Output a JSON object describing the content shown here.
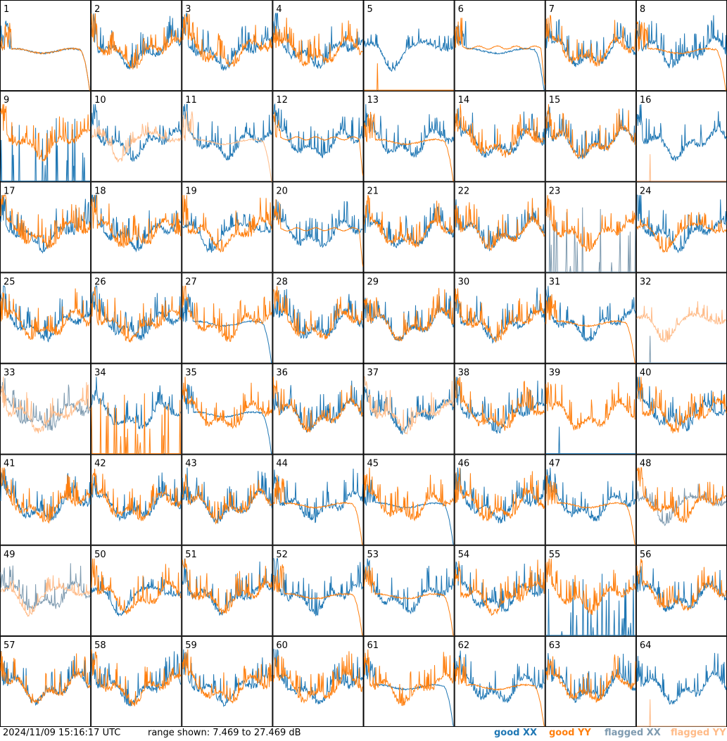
{
  "footer": {
    "timestamp": "2024/11/09 15:16:17 UTC",
    "range_text": "range shown: 7.469 to 27.469 dB",
    "legend": {
      "good_xx": "good XX",
      "good_yy": "good YY",
      "flagged_xx": "flagged XX",
      "flagged_yy": "flagged YY"
    }
  },
  "colors": {
    "good_xx": "#1f77b4",
    "good_yy": "#ff7f0e",
    "flagged_xx": "#7f9bb0",
    "flagged_yy": "#ffbb88"
  },
  "chart_data": {
    "type": "line",
    "layout": "8x8 small multiples",
    "ylim": [
      7.469,
      27.469
    ],
    "yunit": "dB",
    "panels": [
      {
        "label": "1",
        "xx": "good",
        "yy": "good",
        "xx_shape": "rolloff",
        "yy_shape": "rolloff"
      },
      {
        "label": "2",
        "xx": "good",
        "yy": "good",
        "xx_shape": "normal",
        "yy_shape": "normal"
      },
      {
        "label": "3",
        "xx": "good",
        "yy": "good",
        "xx_shape": "normal",
        "yy_shape": "normal"
      },
      {
        "label": "4",
        "xx": "good",
        "yy": "good",
        "xx_shape": "normal",
        "yy_shape": "normal"
      },
      {
        "label": "5",
        "xx": "good",
        "yy": "good",
        "xx_shape": "dip",
        "yy_shape": "zero"
      },
      {
        "label": "6",
        "xx": "good",
        "yy": "good",
        "xx_shape": "rolloff",
        "yy_shape": "flat"
      },
      {
        "label": "7",
        "xx": "good",
        "yy": "good",
        "xx_shape": "normal",
        "yy_shape": "normal"
      },
      {
        "label": "8",
        "xx": "good",
        "yy": "good",
        "xx_shape": "normal",
        "yy_shape": "rolloff"
      },
      {
        "label": "9",
        "xx": "good",
        "yy": "good",
        "xx_shape": "spiky_low",
        "yy_shape": "normal"
      },
      {
        "label": "10",
        "xx": "good",
        "yy": "flagged",
        "xx_shape": "normal",
        "yy_shape": "dip"
      },
      {
        "label": "11",
        "xx": "good",
        "yy": "flagged",
        "xx_shape": "normal",
        "yy_shape": "rolloff"
      },
      {
        "label": "12",
        "xx": "good",
        "yy": "good",
        "xx_shape": "normal",
        "yy_shape": "flat"
      },
      {
        "label": "13",
        "xx": "good",
        "yy": "good",
        "xx_shape": "normal",
        "yy_shape": "rolloff"
      },
      {
        "label": "14",
        "xx": "good",
        "yy": "good",
        "xx_shape": "normal",
        "yy_shape": "normal"
      },
      {
        "label": "15",
        "xx": "good",
        "yy": "good",
        "xx_shape": "normal",
        "yy_shape": "normal"
      },
      {
        "label": "16",
        "xx": "good",
        "yy": "flagged",
        "xx_shape": "normal",
        "yy_shape": "zero"
      },
      {
        "label": "17",
        "xx": "good",
        "yy": "good",
        "xx_shape": "normal",
        "yy_shape": "normal"
      },
      {
        "label": "18",
        "xx": "good",
        "yy": "good",
        "xx_shape": "normal",
        "yy_shape": "normal"
      },
      {
        "label": "19",
        "xx": "good",
        "yy": "good",
        "xx_shape": "dip",
        "yy_shape": "normal"
      },
      {
        "label": "20",
        "xx": "good",
        "yy": "good",
        "xx_shape": "normal",
        "yy_shape": "flat"
      },
      {
        "label": "21",
        "xx": "good",
        "yy": "good",
        "xx_shape": "normal",
        "yy_shape": "normal"
      },
      {
        "label": "22",
        "xx": "good",
        "yy": "good",
        "xx_shape": "normal",
        "yy_shape": "normal"
      },
      {
        "label": "23",
        "xx": "flagged",
        "yy": "good",
        "xx_shape": "spiky_low",
        "yy_shape": "normal"
      },
      {
        "label": "24",
        "xx": "good",
        "yy": "good",
        "xx_shape": "normal",
        "yy_shape": "dip"
      },
      {
        "label": "25",
        "xx": "good",
        "yy": "good",
        "xx_shape": "normal",
        "yy_shape": "normal"
      },
      {
        "label": "26",
        "xx": "good",
        "yy": "good",
        "xx_shape": "normal",
        "yy_shape": "normal"
      },
      {
        "label": "27",
        "xx": "good",
        "yy": "good",
        "xx_shape": "rolloff",
        "yy_shape": "normal"
      },
      {
        "label": "28",
        "xx": "good",
        "yy": "good",
        "xx_shape": "normal",
        "yy_shape": "normal"
      },
      {
        "label": "29",
        "xx": "good",
        "yy": "good",
        "xx_shape": "normal",
        "yy_shape": "normal"
      },
      {
        "label": "30",
        "xx": "good",
        "yy": "good",
        "xx_shape": "normal",
        "yy_shape": "normal"
      },
      {
        "label": "31",
        "xx": "good",
        "yy": "good",
        "xx_shape": "normal",
        "yy_shape": "rolloff"
      },
      {
        "label": "32",
        "xx": "flagged",
        "yy": "flagged",
        "xx_shape": "zero",
        "yy_shape": "dip"
      },
      {
        "label": "33",
        "xx": "flagged",
        "yy": "flagged",
        "xx_shape": "normal",
        "yy_shape": "normal"
      },
      {
        "label": "34",
        "xx": "good",
        "yy": "good",
        "xx_shape": "normal",
        "yy_shape": "spiky_low"
      },
      {
        "label": "35",
        "xx": "good",
        "yy": "good",
        "xx_shape": "rolloff",
        "yy_shape": "normal"
      },
      {
        "label": "36",
        "xx": "good",
        "yy": "good",
        "xx_shape": "normal",
        "yy_shape": "normal"
      },
      {
        "label": "37",
        "xx": "good",
        "yy": "flagged",
        "xx_shape": "normal",
        "yy_shape": "normal"
      },
      {
        "label": "38",
        "xx": "good",
        "yy": "good",
        "xx_shape": "normal",
        "yy_shape": "normal"
      },
      {
        "label": "39",
        "xx": "good",
        "yy": "good",
        "xx_shape": "zero",
        "yy_shape": "normal"
      },
      {
        "label": "40",
        "xx": "good",
        "yy": "good",
        "xx_shape": "normal",
        "yy_shape": "normal"
      },
      {
        "label": "41",
        "xx": "good",
        "yy": "good",
        "xx_shape": "normal",
        "yy_shape": "normal"
      },
      {
        "label": "42",
        "xx": "good",
        "yy": "good",
        "xx_shape": "normal",
        "yy_shape": "normal"
      },
      {
        "label": "43",
        "xx": "good",
        "yy": "good",
        "xx_shape": "normal",
        "yy_shape": "normal"
      },
      {
        "label": "44",
        "xx": "good",
        "yy": "good",
        "xx_shape": "normal",
        "yy_shape": "rolloff"
      },
      {
        "label": "45",
        "xx": "good",
        "yy": "good",
        "xx_shape": "rolloff",
        "yy_shape": "normal"
      },
      {
        "label": "46",
        "xx": "good",
        "yy": "good",
        "xx_shape": "normal",
        "yy_shape": "normal"
      },
      {
        "label": "47",
        "xx": "good",
        "yy": "good",
        "xx_shape": "normal",
        "yy_shape": "rolloff"
      },
      {
        "label": "48",
        "xx": "flagged",
        "yy": "good",
        "xx_shape": "dip",
        "yy_shape": "normal"
      },
      {
        "label": "49",
        "xx": "flagged",
        "yy": "flagged",
        "xx_shape": "normal",
        "yy_shape": "dip"
      },
      {
        "label": "50",
        "xx": "good",
        "yy": "good",
        "xx_shape": "dip",
        "yy_shape": "normal"
      },
      {
        "label": "51",
        "xx": "good",
        "yy": "good",
        "xx_shape": "normal",
        "yy_shape": "normal"
      },
      {
        "label": "52",
        "xx": "good",
        "yy": "good",
        "xx_shape": "normal",
        "yy_shape": "rolloff"
      },
      {
        "label": "53",
        "xx": "good",
        "yy": "good",
        "xx_shape": "normal",
        "yy_shape": "rolloff"
      },
      {
        "label": "54",
        "xx": "good",
        "yy": "good",
        "xx_shape": "normal",
        "yy_shape": "normal"
      },
      {
        "label": "55",
        "xx": "good",
        "yy": "good",
        "xx_shape": "spiky_low",
        "yy_shape": "normal"
      },
      {
        "label": "56",
        "xx": "good",
        "yy": "good",
        "xx_shape": "normal",
        "yy_shape": "normal"
      },
      {
        "label": "57",
        "xx": "good",
        "yy": "good",
        "xx_shape": "normal",
        "yy_shape": "normal"
      },
      {
        "label": "58",
        "xx": "good",
        "yy": "good",
        "xx_shape": "normal",
        "yy_shape": "normal"
      },
      {
        "label": "59",
        "xx": "good",
        "yy": "good",
        "xx_shape": "normal",
        "yy_shape": "normal"
      },
      {
        "label": "60",
        "xx": "good",
        "yy": "good",
        "xx_shape": "normal",
        "yy_shape": "normal"
      },
      {
        "label": "61",
        "xx": "good",
        "yy": "good",
        "xx_shape": "rolloff",
        "yy_shape": "normal"
      },
      {
        "label": "62",
        "xx": "good",
        "yy": "good",
        "xx_shape": "normal",
        "yy_shape": "rolloff"
      },
      {
        "label": "63",
        "xx": "good",
        "yy": "good",
        "xx_shape": "normal",
        "yy_shape": "normal"
      },
      {
        "label": "64",
        "xx": "good",
        "yy": "flagged",
        "xx_shape": "normal",
        "yy_shape": "zero"
      }
    ]
  }
}
